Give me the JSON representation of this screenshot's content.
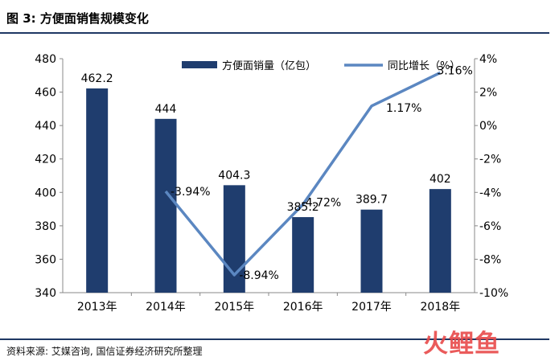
{
  "figure": {
    "title": "图 3:  方便面销售规模变化",
    "source": "资料来源:  艾媒咨询, 国信证券经济研究所整理",
    "watermark": "火鲤鱼"
  },
  "colors": {
    "bar": "#1f3d6e",
    "line": "#5b87c1",
    "rule": "#1f3864"
  },
  "chart_data": {
    "type": "bar",
    "categories": [
      "2013年",
      "2014年",
      "2015年",
      "2016年",
      "2017年",
      "2018年"
    ],
    "series": [
      {
        "name": "方便面销量（亿包）",
        "type": "bar",
        "axis": "left",
        "values": [
          462.2,
          444,
          404.3,
          385.2,
          389.7,
          402
        ],
        "labels": [
          "462.2",
          "444",
          "404.3",
          "385.2",
          "389.7",
          "402"
        ]
      },
      {
        "name": "同比增长（%）",
        "type": "line",
        "axis": "right",
        "values": [
          null,
          -3.94,
          -8.94,
          -4.72,
          1.17,
          3.16
        ],
        "labels": [
          "",
          "-3.94%",
          "-8.94%",
          "-4.72%",
          "1.17%",
          "3.16%"
        ]
      }
    ],
    "y_left": {
      "range": [
        340,
        480
      ],
      "ticks": [
        "340",
        "360",
        "380",
        "400",
        "420",
        "440",
        "460",
        "480"
      ]
    },
    "y_right": {
      "range": [
        -10,
        4
      ],
      "ticks": [
        "-10%",
        "-8%",
        "-6%",
        "-4%",
        "-2%",
        "0%",
        "2%",
        "4%"
      ]
    },
    "legend_position": "top",
    "grid": false
  }
}
